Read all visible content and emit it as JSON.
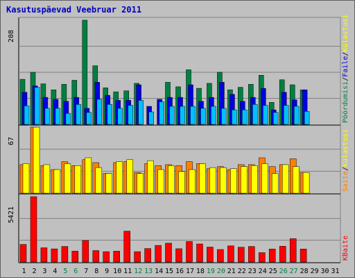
{
  "title": "Kasutuspäevad Veebruar 2011",
  "colors": {
    "background": "#c0c0c0",
    "title": "#0000c0",
    "grid": "#808080",
    "axis": "#000000",
    "pages_dark": "#008040",
    "files_blue": "#0000e0",
    "hits_cyan": "#00c0ff",
    "visits_orange": "#ff8000",
    "sites_yellow": "#ffff00",
    "kbytes_red": "#ff0000",
    "weekend_day": "#008040",
    "weekday_day": "#000000"
  },
  "chart_data": {
    "type": "bar",
    "title": "Kasutuspäevad Veebruar 2011",
    "categories": [
      "1",
      "2",
      "3",
      "4",
      "5",
      "6",
      "7",
      "8",
      "9",
      "10",
      "11",
      "12",
      "13",
      "14",
      "15",
      "16",
      "17",
      "18",
      "19",
      "20",
      "21",
      "22",
      "23",
      "24",
      "25",
      "26",
      "27",
      "28",
      "29",
      "30",
      "31"
    ],
    "weekend_days": [
      "5",
      "6",
      "12",
      "13",
      "19",
      "20",
      "26",
      "27"
    ],
    "panels": [
      {
        "name": "top",
        "max_label": "208",
        "ymax": 208,
        "legend": [
          {
            "text": "Pöördumisi",
            "color": "#008040"
          },
          {
            "text": "/",
            "color": "#000000"
          },
          {
            "text": "Faile",
            "color": "#0000e0"
          },
          {
            "text": "/",
            "color": "#000000"
          },
          {
            "text": "Külastusi",
            "color": "#ffff00"
          }
        ],
        "series": [
          {
            "name": "Pöördumisi",
            "color": "#008040",
            "values": [
              90,
              104,
              81,
              69,
              80,
              88,
              208,
              117,
              73,
              65,
              67,
              82,
              0,
              0,
              84,
              75,
              109,
              72,
              82,
              104,
              69,
              74,
              80,
              98,
              44,
              89,
              79,
              69,
              0,
              0,
              0
            ]
          },
          {
            "name": "Faile",
            "color": "#0000e0",
            "values": [
              64,
              77,
              54,
              50,
              46,
              54,
              32,
              84,
              58,
              48,
              48,
              79,
              36,
              50,
              54,
              54,
              79,
              46,
              54,
              84,
              60,
              46,
              54,
              72,
              29,
              64,
              49,
              69,
              0,
              0,
              0
            ]
          },
          {
            "name": "Külastusi",
            "color": "#00c0ff",
            "values": [
              37,
              74,
              32,
              32,
              22,
              40,
              24,
              50,
              40,
              32,
              38,
              48,
              25,
              45,
              36,
              36,
              36,
              32,
              36,
              32,
              29,
              29,
              40,
              38,
              24,
              38,
              36,
              26,
              0,
              0,
              0
            ]
          }
        ]
      },
      {
        "name": "middle",
        "max_label": "67",
        "ymax": 67,
        "legend": [
          {
            "text": "Saite",
            "color": "#ff8000"
          },
          {
            "text": "/",
            "color": "#000000"
          },
          {
            "text": "Külastusi",
            "color": "#ffff00"
          }
        ],
        "series": [
          {
            "name": "Saite",
            "color": "#ff8000",
            "values": [
              29,
              67,
              28,
              24,
              32,
              28,
              34,
              31,
              20,
              31,
              32,
              21,
              30,
              28,
              29,
              28,
              32,
              30,
              25,
              27,
              24,
              29,
              29,
              36,
              27,
              29,
              35,
              21,
              0,
              0,
              0
            ]
          },
          {
            "name": "Külastusi",
            "color": "#ffff00",
            "values": [
              30,
              67,
              29,
              24,
              30,
              28,
              36,
              26,
              20,
              32,
              34,
              20,
              33,
              24,
              28,
              22,
              24,
              30,
              26,
              26,
              25,
              27,
              28,
              30,
              20,
              29,
              27,
              21,
              0,
              0,
              0
            ]
          }
        ]
      },
      {
        "name": "bottom",
        "max_label": "5421",
        "ymax": 5421,
        "legend": [
          {
            "text": "KBaite",
            "color": "#ff0000"
          }
        ],
        "series": [
          {
            "name": "KBaite",
            "color": "#ff0000",
            "values": [
              1460,
              5421,
              1180,
              1090,
              1290,
              900,
              1790,
              950,
              860,
              900,
              2560,
              860,
              1120,
              1380,
              1560,
              1100,
              1700,
              1500,
              1240,
              1040,
              1340,
              1230,
              1290,
              780,
              1080,
              1310,
              1940,
              1080,
              0,
              0,
              0
            ]
          }
        ]
      }
    ]
  }
}
